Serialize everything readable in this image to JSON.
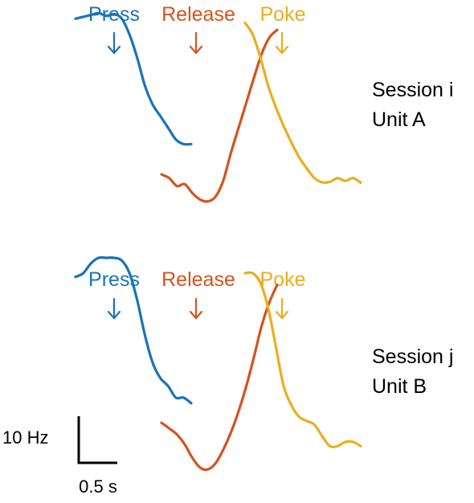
{
  "colors": {
    "press": "#1a73b8",
    "release": "#d4531f",
    "poke": "#ecad1f",
    "scale": "#000000"
  },
  "chart_data": {
    "type": "line",
    "title": "",
    "xlabel": "",
    "ylabel": "",
    "scale_bar": {
      "y_label": "10 Hz",
      "x_label": "0.5 s",
      "y_value": 10,
      "x_value": 0.5
    },
    "panels": [
      {
        "label_line1": "Session i",
        "label_line2": "Unit A",
        "event_labels": [
          "Press",
          "Release",
          "Poke"
        ],
        "series": [
          {
            "name": "Press",
            "x": [
              -0.5,
              -0.4,
              -0.3,
              -0.2,
              -0.1,
              0,
              0.1,
              0.2,
              0.3,
              0.4,
              0.5,
              0.6,
              0.7,
              0.8,
              0.9,
              1.0
            ],
            "y": [
              58.4,
              58.8,
              59.2,
              59.6,
              59.0,
              59.4,
              58.4,
              55.0,
              50.0,
              44.0,
              40.0,
              37.5,
              35.0,
              32.5,
              31.5,
              31.5
            ]
          },
          {
            "name": "Release",
            "x": [
              -0.5,
              -0.4,
              -0.3,
              -0.2,
              -0.1,
              0,
              0.1,
              0.2,
              0.3,
              0.4,
              0.5,
              0.6,
              0.7,
              0.8,
              0.9,
              1.0
            ],
            "y": [
              25.0,
              24.2,
              22.5,
              22.9,
              21.0,
              19.6,
              19.2,
              20.2,
              23.6,
              29.6,
              35.0,
              40.4,
              45.8,
              50.9,
              54.4,
              56.0
            ]
          },
          {
            "name": "Poke",
            "x": [
              -0.5,
              -0.4,
              -0.3,
              -0.2,
              -0.1,
              0,
              0.1,
              0.2,
              0.3,
              0.4,
              0.5,
              0.6,
              0.7,
              0.8,
              0.9,
              1.0
            ],
            "y": [
              57.5,
              55.0,
              50.0,
              44.0,
              39.4,
              35.4,
              31.9,
              28.7,
              26.3,
              24.2,
              23.3,
              23.4,
              24.2,
              23.6,
              24.2,
              23.2
            ]
          }
        ]
      },
      {
        "label_line1": "Session j",
        "label_line2": "Unit B",
        "event_labels": [
          "Press",
          "Release",
          "Poke"
        ],
        "series": [
          {
            "name": "Press",
            "x": [
              -0.5,
              -0.4,
              -0.3,
              -0.2,
              -0.1,
              0,
              0.1,
              0.2,
              0.3,
              0.4,
              0.5,
              0.6,
              0.7,
              0.8,
              0.9,
              1.0
            ],
            "y": [
              59.2,
              60.0,
              62.1,
              63.3,
              63.3,
              63.3,
              62.7,
              60.0,
              54.2,
              46.7,
              40.8,
              37.5,
              35.8,
              33.3,
              33.3,
              32.1
            ]
          },
          {
            "name": "Release",
            "x": [
              -0.5,
              -0.4,
              -0.3,
              -0.2,
              -0.1,
              0,
              0.1,
              0.2,
              0.3,
              0.4,
              0.5,
              0.6,
              0.7,
              0.8,
              0.9,
              1.0
            ],
            "y": [
              27.9,
              26.7,
              25.4,
              23.3,
              20.4,
              18.3,
              17.9,
              19.2,
              22.1,
              25.8,
              30.4,
              35.8,
              42.1,
              48.8,
              53.8,
              57.5
            ]
          },
          {
            "name": "Poke",
            "x": [
              -0.5,
              -0.4,
              -0.3,
              -0.2,
              -0.1,
              0,
              0.1,
              0.2,
              0.3,
              0.4,
              0.5,
              0.6,
              0.7,
              0.8,
              0.9,
              1.0
            ],
            "y": [
              60.0,
              60.0,
              57.9,
              52.5,
              44.2,
              35.8,
              31.7,
              29.2,
              28.3,
              27.5,
              25.0,
              22.9,
              22.9,
              23.8,
              23.8,
              22.9
            ]
          }
        ]
      }
    ]
  }
}
